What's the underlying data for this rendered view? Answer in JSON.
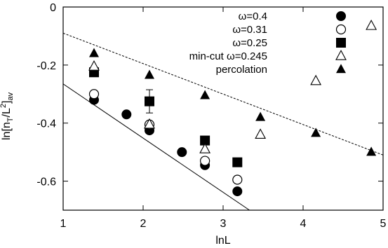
{
  "chart_data": {
    "type": "scatter",
    "xlabel": "lnL",
    "ylabel_parts": [
      "ln[n",
      "T",
      "/L",
      "2",
      "]",
      "av"
    ],
    "xlim": [
      1,
      5
    ],
    "ylim": [
      -0.7,
      0
    ],
    "xticks": [
      1,
      2,
      3,
      4,
      5
    ],
    "yticks": [
      0,
      -0.2,
      -0.4,
      -0.6
    ],
    "xtick_labels": [
      "1",
      "2",
      "3",
      "4",
      "5"
    ],
    "ytick_labels": [
      "0",
      "-0.2",
      "-0.4",
      "-0.6"
    ],
    "grid": false,
    "legend_position": "top-right",
    "series": [
      {
        "name": "ω=0.4",
        "marker": "circle-filled",
        "x": [
          1.386,
          1.792,
          2.079,
          2.485,
          2.773,
          3.178
        ],
        "y": [
          -0.32,
          -0.37,
          -0.425,
          -0.5,
          -0.545,
          -0.635
        ]
      },
      {
        "name": "ω=0.31",
        "marker": "circle-open",
        "x": [
          1.386,
          2.079,
          2.773,
          3.178
        ],
        "y": [
          -0.3,
          -0.405,
          -0.53,
          -0.595
        ]
      },
      {
        "name": "ω=0.25",
        "marker": "square-filled",
        "x": [
          1.386,
          2.079,
          2.773,
          3.178
        ],
        "y": [
          -0.225,
          -0.325,
          -0.46,
          -0.535
        ],
        "error": [
          0,
          0.04,
          0,
          0
        ]
      },
      {
        "name": "min-cut ω=0.245",
        "marker": "triangle-open",
        "x": [
          1.386,
          2.079,
          2.773,
          3.466,
          4.159,
          4.852
        ],
        "y": [
          -0.205,
          -0.405,
          -0.49,
          -0.44,
          -0.255,
          -0.065
        ]
      },
      {
        "name": "percolation",
        "marker": "triangle-filled",
        "x": [
          1.386,
          2.079,
          2.773,
          3.466,
          4.159,
          4.852
        ],
        "y": [
          -0.16,
          -0.235,
          -0.305,
          -0.38,
          -0.435,
          -0.5
        ]
      }
    ],
    "fit_lines": [
      {
        "style": "dashed",
        "x": [
          1,
          5
        ],
        "y": [
          -0.09,
          -0.51
        ]
      },
      {
        "style": "solid",
        "x": [
          1,
          3.33
        ],
        "y": [
          -0.265,
          -0.7
        ]
      }
    ]
  }
}
